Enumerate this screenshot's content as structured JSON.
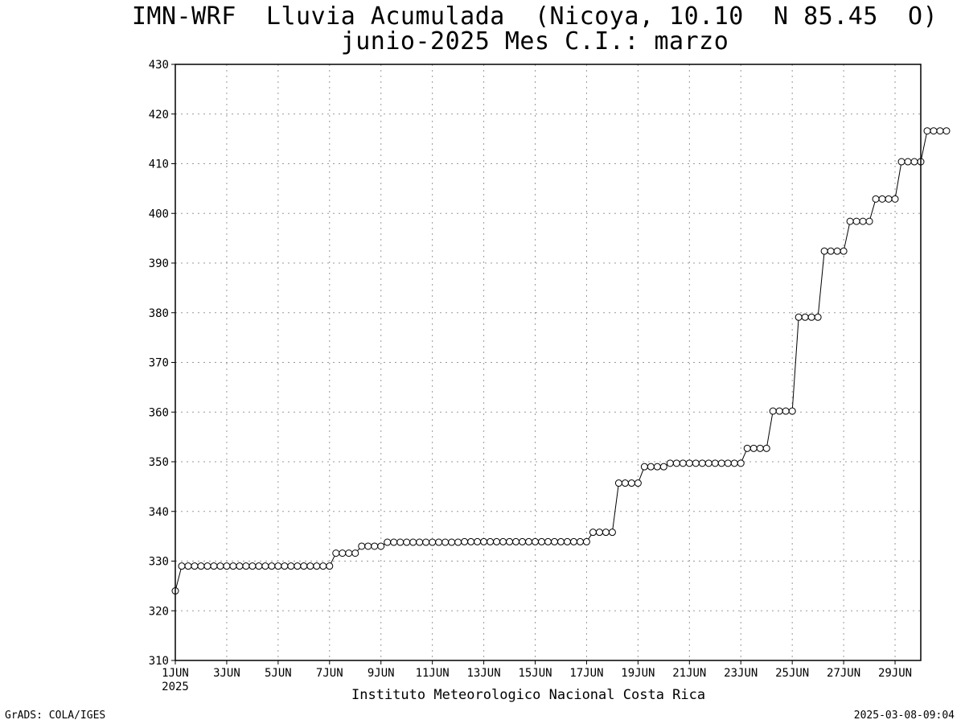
{
  "title_lines": [
    "IMN-WRF  Lluvia Acumulada  (Nicoya, 10.10  N 85.45  O)",
    "junio-2025 Mes C.I.: marzo"
  ],
  "footer": {
    "institute": "Instituto Meteorologico Nacional Costa Rica",
    "left": "GrADS: COLA/IGES",
    "right": "2025-03-08-09:04"
  },
  "chart_data": {
    "type": "line",
    "title": "IMN-WRF  Lluvia Acumulada  (Nicoya, 10.10  N 85.45  O) junio-2025 Mes C.I.: marzo",
    "xlabel": "",
    "ylabel": "",
    "x_range": [
      "2025-06-01 00:00",
      "2025-06-30 00:00"
    ],
    "ylim": [
      310,
      430
    ],
    "y_ticks": [
      310,
      320,
      330,
      340,
      350,
      360,
      370,
      380,
      390,
      400,
      410,
      420,
      430
    ],
    "x_ticks": [
      {
        "date": "2025-06-01",
        "label": "1JUN"
      },
      {
        "date": "2025-06-03",
        "label": "3JUN"
      },
      {
        "date": "2025-06-05",
        "label": "5JUN"
      },
      {
        "date": "2025-06-07",
        "label": "7JUN"
      },
      {
        "date": "2025-06-09",
        "label": "9JUN"
      },
      {
        "date": "2025-06-11",
        "label": "11JUN"
      },
      {
        "date": "2025-06-13",
        "label": "13JUN"
      },
      {
        "date": "2025-06-15",
        "label": "15JUN"
      },
      {
        "date": "2025-06-17",
        "label": "17JUN"
      },
      {
        "date": "2025-06-19",
        "label": "19JUN"
      },
      {
        "date": "2025-06-21",
        "label": "21JUN"
      },
      {
        "date": "2025-06-23",
        "label": "23JUN"
      },
      {
        "date": "2025-06-25",
        "label": "25JUN"
      },
      {
        "date": "2025-06-27",
        "label": "27JUN"
      },
      {
        "date": "2025-06-29",
        "label": "29JUN"
      }
    ],
    "x_year_label": "2025",
    "grid": true,
    "series": [
      {
        "name": "",
        "x_start": "2025-06-01 00:00",
        "x_step_hours": 6,
        "values": [
          324.0,
          329.0,
          329.0,
          329.0,
          329.0,
          329.0,
          329.0,
          329.0,
          329.0,
          329.0,
          329.0,
          329.0,
          329.0,
          329.0,
          329.0,
          329.0,
          329.0,
          329.0,
          329.0,
          329.0,
          329.0,
          329.0,
          329.0,
          329.0,
          329.0,
          331.6,
          331.6,
          331.6,
          331.6,
          333.0,
          333.0,
          333.0,
          333.0,
          333.8,
          333.8,
          333.8,
          333.8,
          333.8,
          333.8,
          333.8,
          333.8,
          333.8,
          333.8,
          333.8,
          333.8,
          333.9,
          333.9,
          333.9,
          333.9,
          333.9,
          333.9,
          333.9,
          333.9,
          333.9,
          333.9,
          333.9,
          333.9,
          333.9,
          333.9,
          333.9,
          333.9,
          333.9,
          333.9,
          333.9,
          333.9,
          335.8,
          335.8,
          335.8,
          335.8,
          345.7,
          345.7,
          345.7,
          345.7,
          349.0,
          349.0,
          349.0,
          349.0,
          349.7,
          349.7,
          349.7,
          349.7,
          349.7,
          349.7,
          349.7,
          349.7,
          349.7,
          349.7,
          349.7,
          349.7,
          352.7,
          352.7,
          352.7,
          352.7,
          360.2,
          360.2,
          360.2,
          360.2,
          379.1,
          379.1,
          379.1,
          379.1,
          392.4,
          392.4,
          392.4,
          392.4,
          398.4,
          398.4,
          398.4,
          398.4,
          402.9,
          402.9,
          402.9,
          402.9,
          410.4,
          410.4,
          410.4,
          410.4,
          416.6,
          416.6,
          416.6,
          416.6
        ]
      }
    ]
  }
}
